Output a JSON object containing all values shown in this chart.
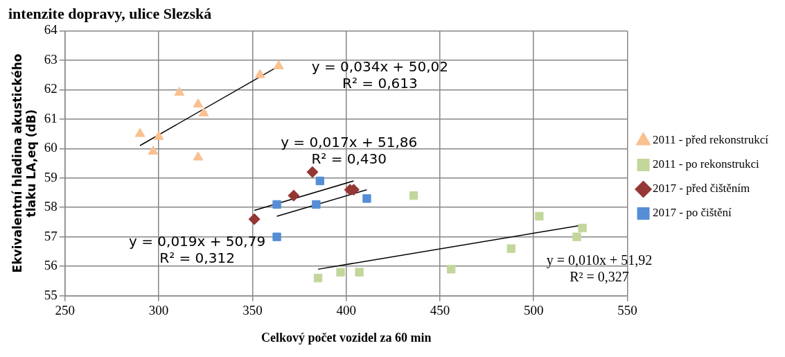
{
  "chart_data": {
    "type": "scatter",
    "title": "intenzite dopravy, ulice Slezská",
    "xlabel": "Celkový počet vozidel za 60 min",
    "ylabel": "Ekvivalentní hladina akustického\ntlaku LA,eq (dB)",
    "xlim": [
      250,
      550
    ],
    "xticks": [
      250,
      300,
      350,
      400,
      450,
      500,
      550
    ],
    "ylim": [
      55,
      64
    ],
    "yticks": [
      55,
      56,
      57,
      58,
      59,
      60,
      61,
      62,
      63,
      64
    ],
    "grid": true,
    "legend": "right",
    "series": [
      {
        "name": "2011 - před rekonstrukcí",
        "color": "#fac090",
        "marker": "triangle",
        "x": [
          290,
          297,
          300,
          311,
          321,
          321,
          324,
          354,
          364
        ],
        "values": [
          60.5,
          59.9,
          60.4,
          61.9,
          59.7,
          61.5,
          61.2,
          62.5,
          62.8
        ]
      },
      {
        "name": "2011 - po rekonstrukci",
        "color": "#c3d69b",
        "marker": "square",
        "x": [
          385,
          397,
          407,
          436,
          456,
          488,
          503,
          523,
          526
        ],
        "values": [
          55.6,
          55.8,
          55.8,
          58.4,
          55.9,
          56.6,
          57.7,
          57.0,
          57.3
        ]
      },
      {
        "name": "2017 - před čištěním",
        "color": "#953735",
        "marker": "diamond",
        "x": [
          351,
          372,
          382,
          402,
          404
        ],
        "values": [
          57.6,
          58.4,
          59.2,
          58.6,
          58.6
        ]
      },
      {
        "name": "2017 - po čištění",
        "color": "#558ed5",
        "marker": "square",
        "x": [
          363,
          363,
          384,
          386,
          411
        ],
        "values": [
          58.1,
          57.0,
          58.1,
          58.9,
          58.3
        ]
      },
      {
        "type": "line",
        "color": "#000000",
        "marker": "none",
        "x": [
          290,
          364
        ],
        "values": [
          60.1,
          62.8
        ]
      },
      {
        "type": "line",
        "color": "#000000",
        "marker": "none",
        "x": [
          385,
          526
        ],
        "values": [
          55.9,
          57.4
        ]
      },
      {
        "type": "line",
        "color": "#000000",
        "marker": "none",
        "x": [
          351,
          404
        ],
        "values": [
          57.9,
          58.9
        ]
      },
      {
        "type": "line",
        "color": "#000000",
        "marker": "none",
        "x": [
          363,
          411
        ],
        "values": [
          57.7,
          58.6
        ]
      }
    ],
    "annotations": [
      "y = 0,034x + 50,02\nR² = 0,613",
      "y = 0,010x + 51,92\nR² = 0,327",
      "y = 0,017x + 51,86\nR² = 0,430",
      "y = 0,019x + 50,79\nR² = 0,312"
    ]
  }
}
